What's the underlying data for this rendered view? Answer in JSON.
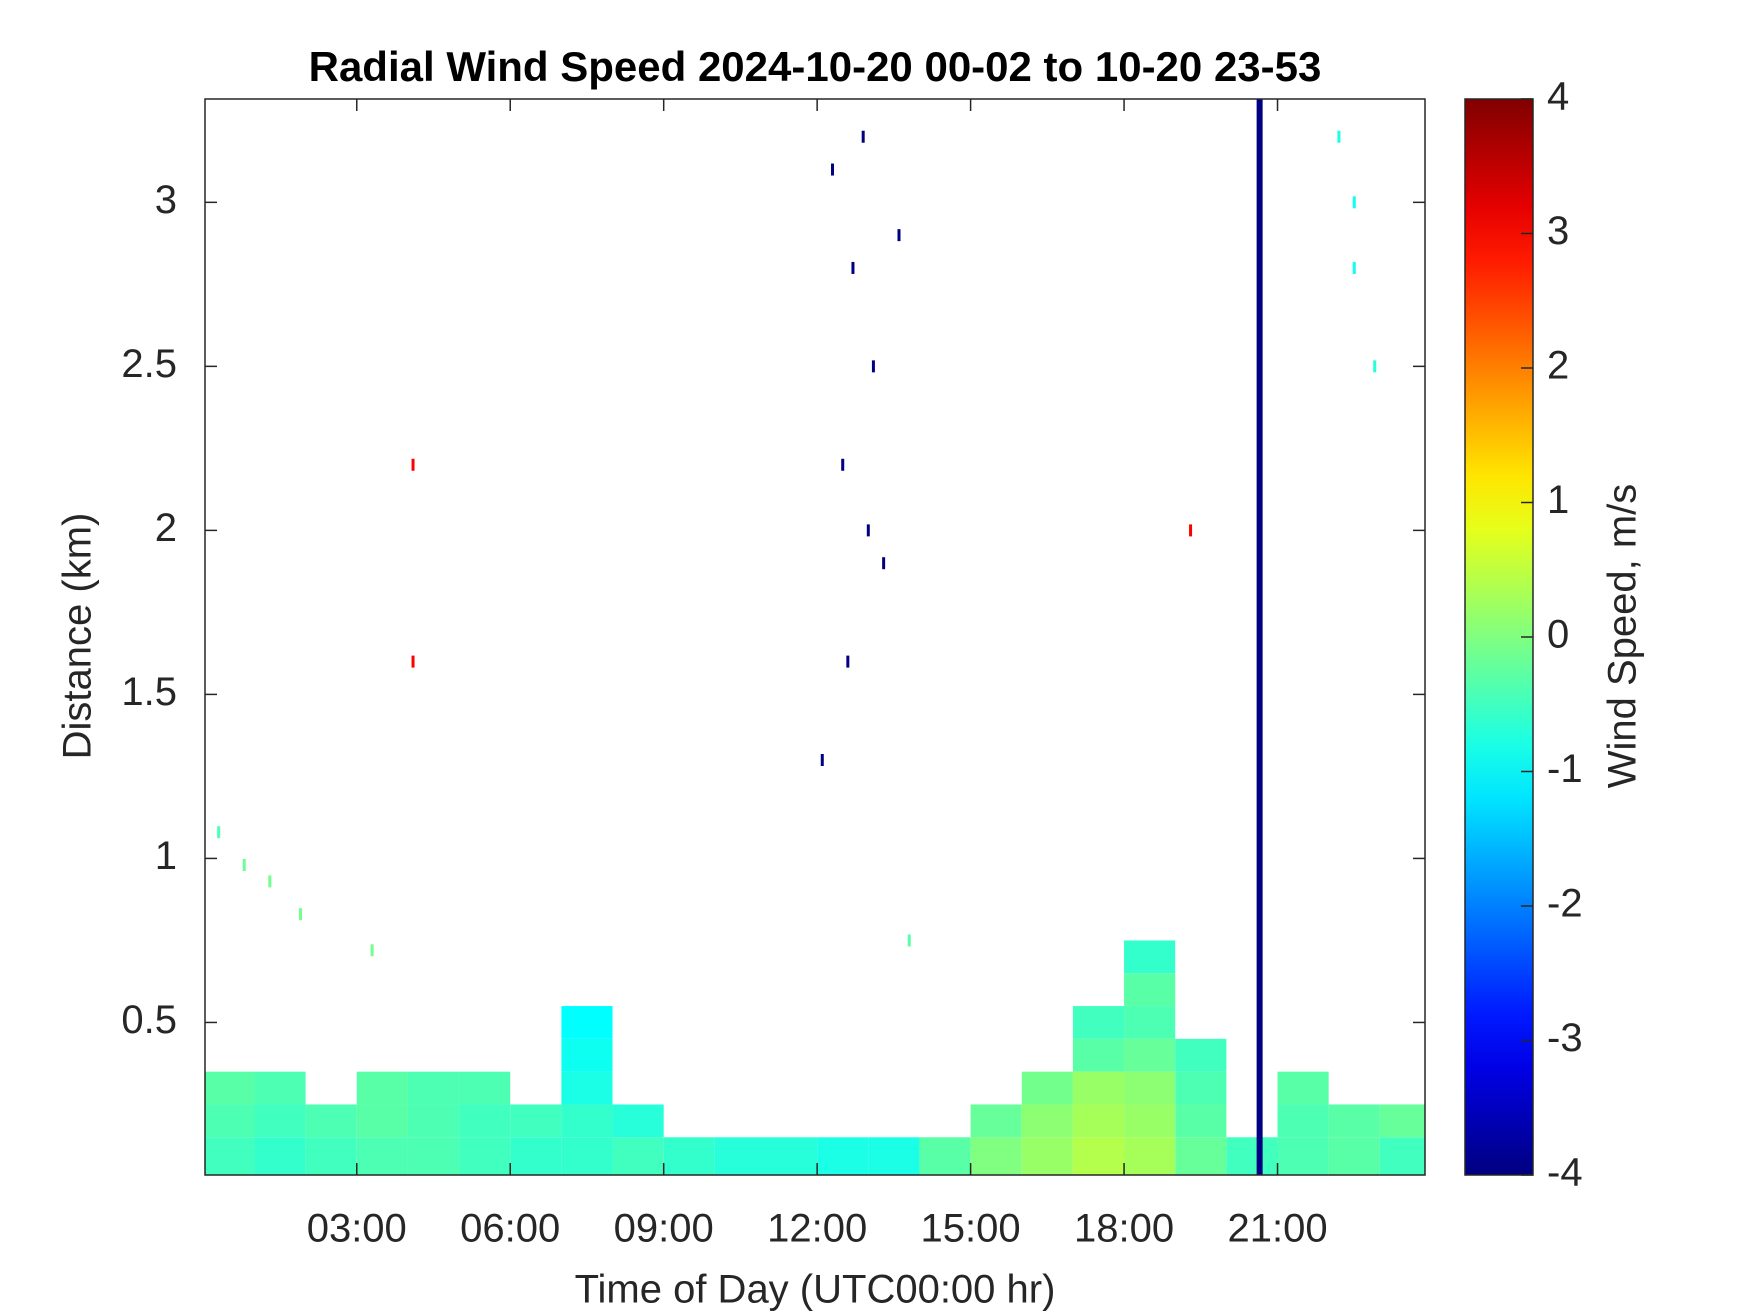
{
  "chart_data": {
    "type": "heatmap",
    "title": "Radial Wind Speed 2024-10-20 00-02 to 10-20 23-53",
    "x_label": "Time of Day (UTC00:00 hr)",
    "y_label": "Distance (km)",
    "colorbar_label": "Wind Speed, m/s",
    "colormap": "jet",
    "xlim": [
      0.033,
      23.883
    ],
    "xticks": [
      {
        "value": 3,
        "label": "03:00"
      },
      {
        "value": 6,
        "label": "06:00"
      },
      {
        "value": 9,
        "label": "09:00"
      },
      {
        "value": 12,
        "label": "12:00"
      },
      {
        "value": 15,
        "label": "15:00"
      },
      {
        "value": 18,
        "label": "18:00"
      },
      {
        "value": 21,
        "label": "21:00"
      }
    ],
    "ylim": [
      0.035,
      3.315
    ],
    "yticks": [
      0.5,
      1,
      1.5,
      2,
      2.5,
      3
    ],
    "clim": [
      -4,
      4
    ],
    "cticks": [
      -4,
      -3,
      -2,
      -1,
      0,
      1,
      2,
      3,
      4
    ],
    "x": [
      0.5,
      1.5,
      2.5,
      3.5,
      4.5,
      5.5,
      6.5,
      7.5,
      8.5,
      9.5,
      10.5,
      11.5,
      12.5,
      13.5,
      14.5,
      15.5,
      16.5,
      17.5,
      18.5,
      19.5,
      20.5,
      21.5,
      22.5,
      23.5
    ],
    "y": [
      0.1,
      0.2,
      0.3,
      0.4,
      0.5,
      0.6,
      0.7
    ],
    "z": [
      [
        -0.5,
        -0.6,
        -0.5,
        -0.4,
        -0.4,
        -0.5,
        -0.6,
        -0.6,
        -0.5,
        -0.6,
        -0.7,
        -0.7,
        -0.8,
        -0.8,
        -0.3,
        0.0,
        0.2,
        0.4,
        0.3,
        -0.2,
        -0.5,
        -0.4,
        -0.3,
        -0.5
      ],
      [
        -0.4,
        -0.5,
        -0.4,
        -0.3,
        -0.4,
        -0.5,
        -0.5,
        -0.6,
        -0.7,
        null,
        null,
        null,
        null,
        null,
        null,
        -0.2,
        0.1,
        0.3,
        0.2,
        -0.3,
        null,
        -0.4,
        -0.3,
        -0.2
      ],
      [
        -0.3,
        -0.4,
        null,
        -0.3,
        -0.4,
        -0.4,
        null,
        -0.8,
        null,
        null,
        null,
        null,
        null,
        null,
        null,
        null,
        -0.1,
        0.2,
        0.1,
        -0.4,
        null,
        -0.3,
        null,
        null
      ],
      [
        null,
        null,
        null,
        null,
        null,
        null,
        null,
        -0.9,
        null,
        null,
        null,
        null,
        null,
        null,
        null,
        null,
        null,
        -0.3,
        -0.2,
        -0.5,
        null,
        null,
        null,
        null
      ],
      [
        null,
        null,
        null,
        null,
        null,
        null,
        null,
        -1.0,
        null,
        null,
        null,
        null,
        null,
        null,
        null,
        null,
        null,
        -0.5,
        -0.4,
        null,
        null,
        null,
        null,
        null
      ],
      [
        null,
        null,
        null,
        null,
        null,
        null,
        null,
        null,
        null,
        null,
        null,
        null,
        null,
        null,
        null,
        null,
        null,
        null,
        -0.3,
        null,
        null,
        null,
        null,
        null
      ],
      [
        null,
        null,
        null,
        null,
        null,
        null,
        null,
        null,
        null,
        null,
        null,
        null,
        null,
        null,
        null,
        null,
        null,
        null,
        -0.6,
        null,
        null,
        null,
        null,
        null
      ]
    ],
    "points": {
      "x": [
        0.3,
        0.8,
        1.3,
        1.9,
        3.3,
        13.8,
        22.2,
        22.5,
        22.5,
        22.9,
        12.3,
        12.7,
        13.1,
        12.5,
        13.3,
        12.6,
        12.1,
        13.0,
        13.6,
        12.9,
        4.1,
        4.1,
        19.3
      ],
      "y": [
        1.08,
        0.98,
        0.93,
        0.83,
        0.72,
        0.75,
        3.2,
        3.0,
        2.8,
        2.5,
        3.1,
        2.8,
        2.5,
        2.2,
        1.9,
        1.6,
        1.3,
        2.0,
        2.9,
        3.2,
        1.6,
        2.2,
        2.0
      ],
      "values": [
        -0.4,
        -0.2,
        -0.1,
        -0.1,
        -0.1,
        -0.3,
        -0.8,
        -0.9,
        -0.9,
        -0.7,
        -4,
        -4,
        -4,
        -4,
        -4,
        -4,
        -4,
        -4,
        -4,
        -4,
        3,
        3,
        3
      ]
    },
    "band": {
      "x": 20.65,
      "value": -4
    }
  }
}
